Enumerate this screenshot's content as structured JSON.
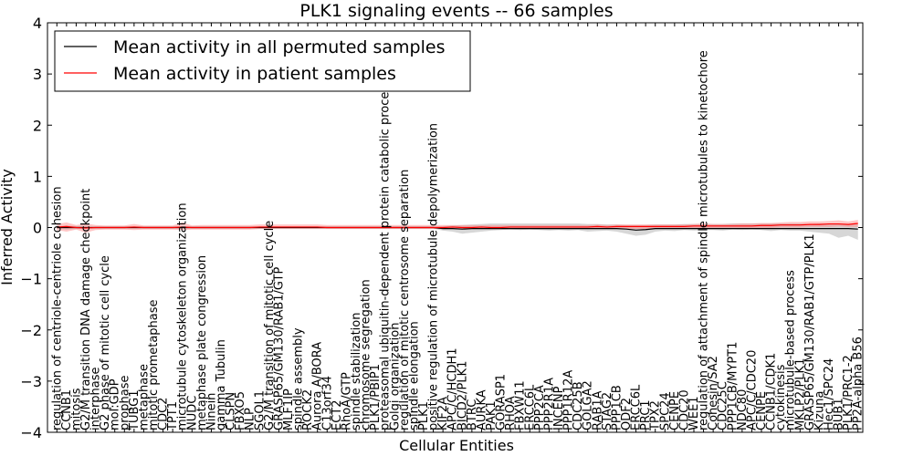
{
  "chart_data": {
    "type": "line",
    "title": "PLK1 signaling events -- 66 samples",
    "xlabel": "Cellular Entities",
    "ylabel": "Inferred Activity",
    "ylim": [
      -4,
      4
    ],
    "yticks": [
      -4,
      -3,
      -2,
      -1,
      0,
      1,
      2,
      3,
      4
    ],
    "grid": false,
    "legend_position": "top-left",
    "colors": {
      "permuted": "#000000",
      "patient": "#ff0000",
      "patient_band": "#ff8080",
      "permuted_band": "#b0b0b0"
    },
    "categories": [
      "regulation of centriole-centriole cohesion",
      "CCNB1",
      "mitosis",
      "G2/M transition DNA damage checkpoint",
      "interphase",
      "G2 phase of mitotic cell cycle",
      "mol:GDP",
      "prophase",
      "TUBG1",
      "metaphase",
      "mitotic prometaphase",
      "CDC2",
      "TPT1",
      "microtubule cytoskeleton organization",
      "NUDC",
      "metaphase plate congression",
      "Ninein",
      "gamma Tubulin",
      "CLSPN",
      "FBXO5",
      "NLP",
      "SGOL1",
      "G2/M transition of mitotic cell cycle",
      "GRASP65/GM130/RAB1/GTP",
      "MLF1IP",
      "spindle assembly",
      "ROCK2",
      "Aurora A/BORA",
      "C13orf34",
      "ECT2",
      "RhoA/GTP",
      "spindle stabilization",
      "chromosome segregation",
      "PLK1/PBIP1",
      "proteasomal ubiquitin-dependent protein catabolic process",
      "Golgi organization",
      "regulation of mitotic centrosome separation",
      "spindle elongation",
      "PLK1",
      "positive regulation of microtubule depolymerization",
      "KIF2A",
      "APC/C/HCDH1",
      "BICD2/PLK1",
      "BTRC",
      "AURKA",
      "PAK1",
      "GORASP1",
      "RHOA",
      "FBXW11",
      "ERCC6L",
      "PPP2CA",
      "PPP2R1A",
      "INCENP",
      "PPP1R12A",
      "CDC25B",
      "GOLGA2",
      "RAB1A",
      "STAG2",
      "PPP1CB",
      "ODF2",
      "ERCC6L",
      "PRC1",
      "TPX2",
      "SPC24",
      "CENPE",
      "CDC20",
      "WEE1",
      "regulation of attachment of spindle microtubules to kinetochore",
      "Cohesin/SA2",
      "CDC25C",
      "PPP1CB/MYPT1",
      "NDC80",
      "APC/C/CDC20",
      "CENPE",
      "CCNB1/CDK1",
      "cytokinesis",
      "microtubule-based process",
      "MKLP2/PLK1",
      "GRASP65/GM130/RAB1/GTP/PLK1",
      "Kizuna",
      "Hec1/SPC24",
      "BUB1",
      "PLK1/PRC1-2",
      "PP2A-alpha B56"
    ],
    "series": [
      {
        "name": "Mean activity in all permuted samples",
        "values": [
          0,
          0,
          0,
          0,
          0,
          0,
          0,
          0,
          0,
          0,
          0,
          0,
          0,
          0,
          0,
          0,
          0,
          0,
          0,
          0,
          0,
          0,
          0,
          0,
          0,
          0,
          0,
          0,
          0,
          0,
          0,
          0,
          0,
          0,
          0,
          0,
          0,
          0,
          0,
          0,
          -0.02,
          -0.02,
          -0.03,
          -0.02,
          -0.02,
          -0.02,
          -0.02,
          -0.02,
          -0.02,
          -0.02,
          -0.02,
          -0.02,
          -0.02,
          -0.02,
          -0.02,
          -0.02,
          -0.02,
          -0.02,
          -0.02,
          -0.03,
          -0.05,
          -0.04,
          -0.02,
          -0.02,
          -0.02,
          -0.02,
          -0.02,
          -0.02,
          -0.02,
          -0.02,
          -0.02,
          -0.02,
          -0.02,
          -0.02,
          -0.02,
          -0.02,
          -0.02,
          -0.02,
          -0.02,
          -0.02,
          -0.02,
          -0.02,
          -0.02,
          -0.03
        ],
        "band_low": [
          -0.02,
          -0.04,
          -0.03,
          -0.02,
          -0.02,
          -0.02,
          -0.02,
          -0.02,
          -0.02,
          -0.02,
          -0.02,
          -0.02,
          -0.02,
          -0.02,
          -0.02,
          -0.02,
          -0.02,
          -0.02,
          -0.02,
          -0.02,
          -0.02,
          -0.02,
          -0.02,
          -0.02,
          -0.02,
          -0.02,
          -0.02,
          -0.02,
          -0.02,
          -0.02,
          -0.02,
          -0.02,
          -0.02,
          -0.02,
          -0.02,
          -0.02,
          -0.02,
          -0.02,
          -0.02,
          -0.02,
          -0.06,
          -0.08,
          -0.12,
          -0.1,
          -0.08,
          -0.06,
          -0.05,
          -0.04,
          -0.05,
          -0.04,
          -0.05,
          -0.06,
          -0.05,
          -0.06,
          -0.05,
          -0.08,
          -0.07,
          -0.06,
          -0.08,
          -0.12,
          -0.16,
          -0.14,
          -0.08,
          -0.06,
          -0.07,
          -0.05,
          -0.06,
          -0.05,
          -0.05,
          -0.06,
          -0.04,
          -0.05,
          -0.04,
          -0.05,
          -0.07,
          -0.05,
          -0.06,
          -0.06,
          -0.08,
          -0.1,
          -0.12,
          -0.2,
          -0.16,
          -0.24
        ],
        "band_high": [
          0.02,
          0.04,
          0.03,
          0.02,
          0.02,
          0.02,
          0.02,
          0.02,
          0.02,
          0.02,
          0.02,
          0.02,
          0.02,
          0.02,
          0.02,
          0.02,
          0.02,
          0.02,
          0.02,
          0.02,
          0.02,
          0.02,
          0.02,
          0.02,
          0.02,
          0.02,
          0.02,
          0.02,
          0.02,
          0.02,
          0.02,
          0.02,
          0.02,
          0.02,
          0.02,
          0.02,
          0.02,
          0.02,
          0.02,
          0.02,
          0.03,
          0.04,
          0.05,
          0.06,
          0.07,
          0.08,
          0.08,
          0.08,
          0.08,
          0.08,
          0.08,
          0.08,
          0.08,
          0.08,
          0.08,
          0.07,
          0.07,
          0.06,
          0.06,
          0.05,
          0.05,
          0.05,
          0.06,
          0.06,
          0.06,
          0.07,
          0.07,
          0.07,
          0.07,
          0.07,
          0.08,
          0.08,
          0.08,
          0.08,
          0.08,
          0.08,
          0.08,
          0.08,
          0.07,
          0.08,
          0.07,
          0.08,
          0.06,
          0.07
        ]
      },
      {
        "name": "Mean activity in patient samples",
        "values": [
          0.01,
          0.02,
          0,
          -0.01,
          0,
          0,
          0,
          0,
          0.01,
          0,
          0,
          0,
          0,
          0.01,
          0,
          0,
          0,
          0,
          0,
          0,
          0,
          0.01,
          0.01,
          0.01,
          0.01,
          0.01,
          0.01,
          0.01,
          0,
          0,
          0,
          0,
          0,
          0,
          0,
          0,
          0,
          0,
          0,
          0,
          0,
          0.01,
          0,
          0,
          0.01,
          0,
          0,
          0.01,
          0.01,
          0.01,
          0.01,
          0.01,
          0.01,
          0.01,
          0.01,
          0.01,
          0.02,
          0.01,
          0.02,
          0.02,
          0.02,
          0.02,
          0.02,
          0.02,
          0.02,
          0.02,
          0.03,
          0.03,
          0.03,
          0.03,
          0.03,
          0.03,
          0.03,
          0.04,
          0.04,
          0.05,
          0.05,
          0.05,
          0.06,
          0.06,
          0.07,
          0.07,
          0.06,
          0.08
        ],
        "band_low": [
          -0.05,
          -0.08,
          -0.04,
          -0.1,
          -0.05,
          -0.04,
          -0.04,
          -0.04,
          -0.05,
          -0.04,
          -0.04,
          -0.04,
          -0.04,
          -0.05,
          -0.04,
          -0.04,
          -0.04,
          -0.04,
          -0.04,
          -0.04,
          -0.04,
          -0.03,
          -0.03,
          -0.03,
          -0.03,
          -0.03,
          -0.03,
          -0.03,
          -0.03,
          -0.03,
          -0.03,
          -0.03,
          -0.03,
          -0.03,
          -0.03,
          -0.03,
          -0.03,
          -0.03,
          -0.03,
          -0.03,
          -0.03,
          -0.03,
          -0.03,
          -0.03,
          -0.03,
          -0.03,
          -0.03,
          -0.03,
          -0.03,
          -0.03,
          -0.03,
          -0.03,
          -0.03,
          -0.03,
          -0.03,
          -0.03,
          -0.03,
          -0.03,
          -0.03,
          -0.03,
          -0.03,
          -0.03,
          -0.03,
          -0.03,
          -0.03,
          -0.03,
          -0.02,
          -0.02,
          -0.02,
          -0.02,
          -0.02,
          -0.02,
          -0.02,
          -0.02,
          -0.01,
          0,
          0,
          0,
          0.01,
          0.01,
          0.01,
          0.02,
          0.01,
          0.01
        ],
        "band_high": [
          0.07,
          0.1,
          0.05,
          0.08,
          0.05,
          0.04,
          0.04,
          0.04,
          0.07,
          0.04,
          0.04,
          0.04,
          0.04,
          0.1,
          0.04,
          0.05,
          0.05,
          0.05,
          0.05,
          0.05,
          0.05,
          0.06,
          0.06,
          0.06,
          0.06,
          0.06,
          0.06,
          0.06,
          0.05,
          0.05,
          0.05,
          0.05,
          0.05,
          0.05,
          0.05,
          0.05,
          0.05,
          0.05,
          0.05,
          0.05,
          0.05,
          0.05,
          0.05,
          0.05,
          0.05,
          0.05,
          0.05,
          0.05,
          0.05,
          0.05,
          0.05,
          0.05,
          0.05,
          0.05,
          0.05,
          0.05,
          0.06,
          0.05,
          0.06,
          0.06,
          0.06,
          0.06,
          0.06,
          0.06,
          0.06,
          0.06,
          0.07,
          0.08,
          0.07,
          0.07,
          0.07,
          0.08,
          0.08,
          0.09,
          0.09,
          0.1,
          0.11,
          0.11,
          0.12,
          0.12,
          0.13,
          0.14,
          0.12,
          0.15
        ]
      }
    ]
  }
}
